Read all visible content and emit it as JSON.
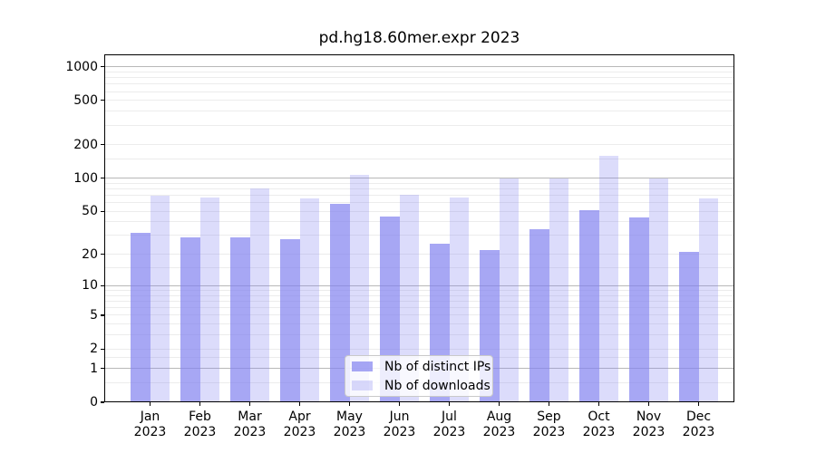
{
  "chart_data": {
    "type": "bar",
    "title": "pd.hg18.60mer.expr 2023",
    "year_label": "2023",
    "categories": [
      "Jan",
      "Feb",
      "Mar",
      "Apr",
      "May",
      "Jun",
      "Jul",
      "Aug",
      "Sep",
      "Oct",
      "Nov",
      "Dec"
    ],
    "series": [
      {
        "name": "Nb of distinct IPs",
        "color": "rgba(130,130,240,0.7)",
        "values": [
          32,
          29,
          29,
          28,
          58,
          45,
          25,
          22,
          34,
          51,
          44,
          21
        ]
      },
      {
        "name": "Nb of downloads",
        "color": "rgba(130,130,240,0.28)",
        "values": [
          70,
          67,
          80,
          65,
          108,
          71,
          67,
          100,
          100,
          158,
          100,
          66
        ]
      }
    ],
    "yscale": "log10(1+x)",
    "yticks": [
      0,
      1,
      2,
      5,
      10,
      20,
      50,
      100,
      200,
      500,
      1000
    ],
    "ylim": [
      0,
      1300
    ],
    "xlabel": "",
    "ylabel": "",
    "grid": true,
    "legend_position": "bottom-center",
    "colors": {
      "grid_major": "#b8b8b8",
      "grid_minor": "#ececec",
      "frame": "#000000",
      "background": "#ffffff",
      "text": "#000000"
    }
  }
}
